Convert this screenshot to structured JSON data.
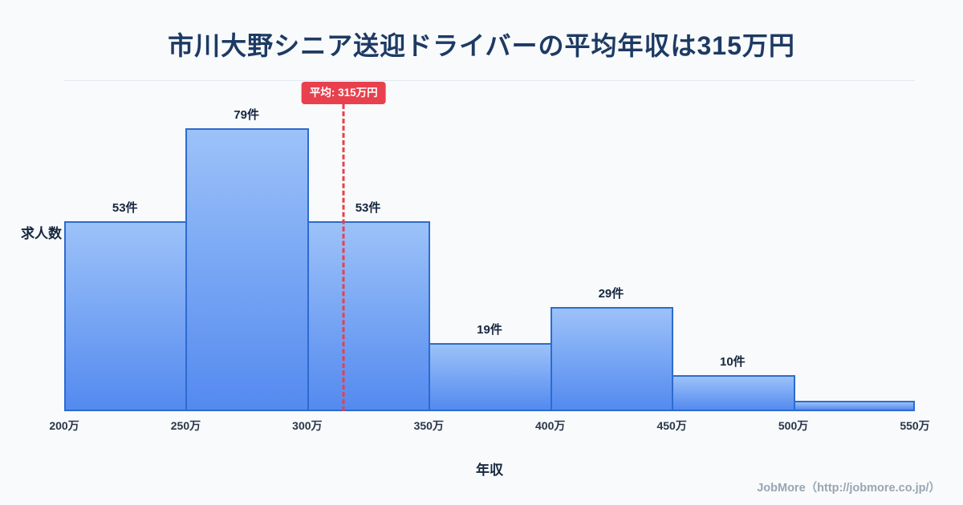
{
  "page": {
    "footer": "JobMore（http://jobmore.co.jp/）"
  },
  "chart_data": {
    "type": "bar",
    "subtype": "histogram",
    "title": "市川大野シニア送迎ドライバーの平均年収は315万円",
    "xlabel": "年収",
    "ylabel": "求人数",
    "x_tick_labels": [
      "200万",
      "250万",
      "300万",
      "350万",
      "400万",
      "450万",
      "500万",
      "550万"
    ],
    "bin_edges_man_yen": [
      200,
      250,
      300,
      350,
      400,
      450,
      500,
      550
    ],
    "values": [
      53,
      79,
      53,
      19,
      29,
      10,
      3
    ],
    "bar_labels": [
      "53件",
      "79件",
      "53件",
      "19件",
      "29件",
      "10件",
      ""
    ],
    "average_man_yen": 315,
    "average_label": "平均: 315万円",
    "x_range_man_yen": [
      200,
      550
    ],
    "legend": "none",
    "grid": "off",
    "colors": {
      "background": "#f8fafc",
      "title": "#1d3a63",
      "bar_top": "#9cc2f8",
      "bar_bottom": "#548af0",
      "bar_border": "#2d6bcf",
      "average_line": "#e8404d"
    }
  }
}
